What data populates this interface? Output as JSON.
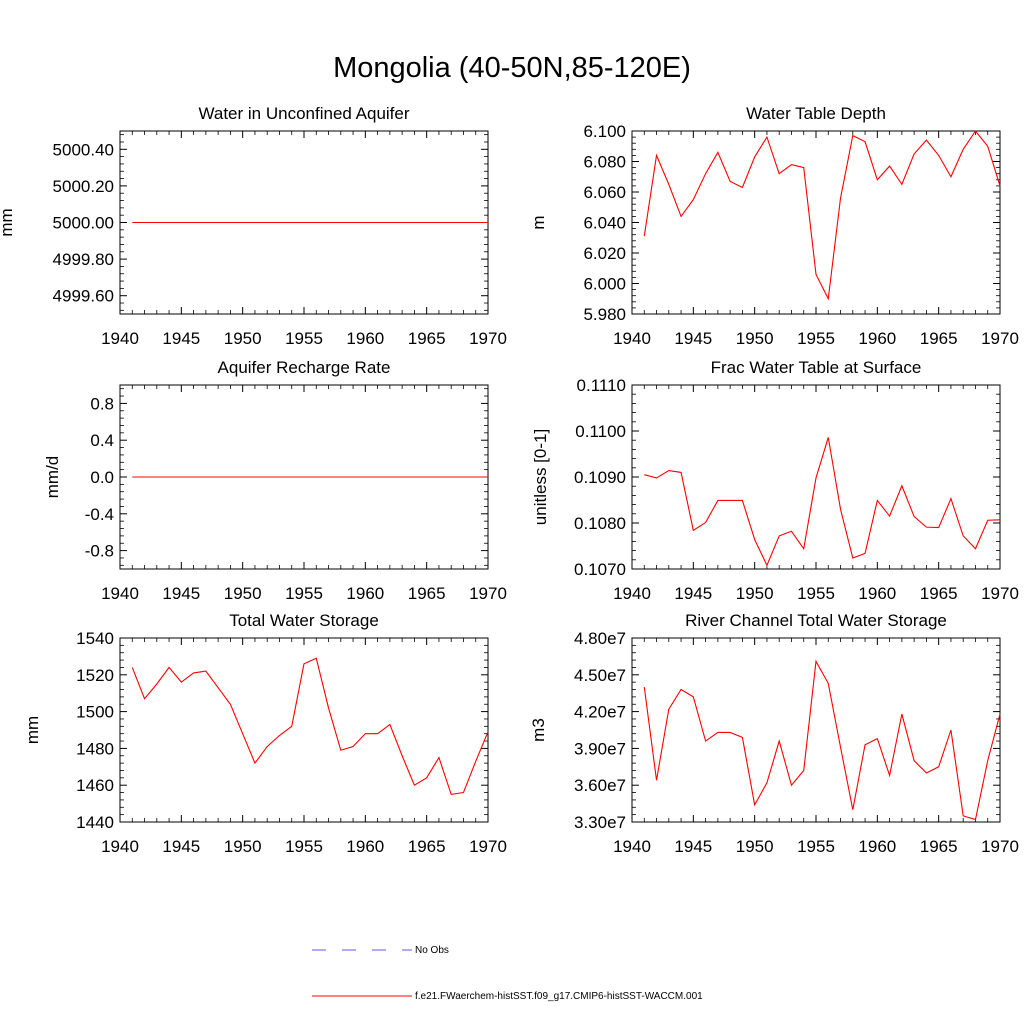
{
  "figure": {
    "title": "Mongolia (40-50N,85-120E)",
    "legend": [
      {
        "label": "No Obs",
        "color": "#5b5bd6",
        "dash": "dashed"
      },
      {
        "label": "f.e21.FWaerchem-histSST.f09_g17.CMIP6-histSST-WACCM.001",
        "color": "#ff0000",
        "dash": "solid"
      }
    ]
  },
  "chart_data": [
    {
      "type": "line",
      "title": "Water in Unconfined Aquifer",
      "ylabel": "mm",
      "xlabel": "",
      "xlim": [
        1940,
        1970
      ],
      "ylim": [
        4999.5,
        5000.5
      ],
      "xticks": [
        "1940",
        "1945",
        "1950",
        "1955",
        "1960",
        "1965",
        "1970"
      ],
      "yticks": [
        "4999.60",
        "4999.80",
        "5000.00",
        "5000.20",
        "5000.40"
      ],
      "series": [
        {
          "color": "#ff0000",
          "x": [
            1941,
            1942,
            1943,
            1944,
            1945,
            1946,
            1947,
            1948,
            1949,
            1950,
            1951,
            1952,
            1953,
            1954,
            1955,
            1956,
            1957,
            1958,
            1959,
            1960,
            1961,
            1962,
            1963,
            1964,
            1965,
            1966,
            1967,
            1968,
            1969,
            1970
          ],
          "y": [
            5000,
            5000,
            5000,
            5000,
            5000,
            5000,
            5000,
            5000,
            5000,
            5000,
            5000,
            5000,
            5000,
            5000,
            5000,
            5000,
            5000,
            5000,
            5000,
            5000,
            5000,
            5000,
            5000,
            5000,
            5000,
            5000,
            5000,
            5000,
            5000,
            5000
          ]
        }
      ]
    },
    {
      "type": "line",
      "title": "Water Table Depth",
      "ylabel": "m",
      "xlabel": "",
      "xlim": [
        1940,
        1970
      ],
      "ylim": [
        5.98,
        6.1
      ],
      "xticks": [
        "1940",
        "1945",
        "1950",
        "1955",
        "1960",
        "1965",
        "1970"
      ],
      "yticks": [
        "5.980",
        "6.000",
        "6.020",
        "6.040",
        "6.060",
        "6.080",
        "6.100"
      ],
      "series": [
        {
          "color": "#ff0000",
          "x": [
            1941,
            1942,
            1943,
            1944,
            1945,
            1946,
            1947,
            1948,
            1949,
            1950,
            1951,
            1952,
            1953,
            1954,
            1955,
            1956,
            1957,
            1958,
            1959,
            1960,
            1961,
            1962,
            1963,
            1964,
            1965,
            1966,
            1967,
            1968,
            1969,
            1970
          ],
          "y": [
            6.031,
            6.084,
            6.065,
            6.044,
            6.055,
            6.072,
            6.086,
            6.067,
            6.063,
            6.083,
            6.096,
            6.072,
            6.078,
            6.076,
            6.006,
            5.99,
            6.056,
            6.097,
            6.093,
            6.068,
            6.077,
            6.065,
            6.085,
            6.094,
            6.084,
            6.07,
            6.088,
            6.1,
            6.09,
            6.064
          ]
        }
      ]
    },
    {
      "type": "line",
      "title": "Aquifer Recharge Rate",
      "ylabel": "mm/d",
      "xlabel": "",
      "xlim": [
        1940,
        1970
      ],
      "ylim": [
        -1,
        1
      ],
      "xticks": [
        "1940",
        "1945",
        "1950",
        "1955",
        "1960",
        "1965",
        "1970"
      ],
      "yticks": [
        "-0.8",
        "-0.4",
        "0.0",
        "0.4",
        "0.8"
      ],
      "series": [
        {
          "color": "#ff0000",
          "x": [
            1941,
            1942,
            1943,
            1944,
            1945,
            1946,
            1947,
            1948,
            1949,
            1950,
            1951,
            1952,
            1953,
            1954,
            1955,
            1956,
            1957,
            1958,
            1959,
            1960,
            1961,
            1962,
            1963,
            1964,
            1965,
            1966,
            1967,
            1968,
            1969,
            1970
          ],
          "y": [
            0,
            0,
            0,
            0,
            0,
            0,
            0,
            0,
            0,
            0,
            0,
            0,
            0,
            0,
            0,
            0,
            0,
            0,
            0,
            0,
            0,
            0,
            0,
            0,
            0,
            0,
            0,
            0,
            0,
            0
          ]
        }
      ]
    },
    {
      "type": "line",
      "title": "Frac Water Table at Surface",
      "ylabel": "unitless [0-1]",
      "xlabel": "",
      "xlim": [
        1940,
        1970
      ],
      "ylim": [
        0.107,
        0.111
      ],
      "xticks": [
        "1940",
        "1945",
        "1950",
        "1955",
        "1960",
        "1965",
        "1970"
      ],
      "yticks": [
        "0.1070",
        "0.1080",
        "0.1090",
        "0.1100",
        "0.1110"
      ],
      "series": [
        {
          "color": "#ff0000",
          "x": [
            1941,
            1942,
            1943,
            1944,
            1945,
            1946,
            1947,
            1948,
            1949,
            1950,
            1951,
            1952,
            1953,
            1954,
            1955,
            1956,
            1957,
            1958,
            1959,
            1960,
            1961,
            1962,
            1963,
            1964,
            1965,
            1966,
            1967,
            1968,
            1969,
            1970
          ],
          "y": [
            0.10905,
            0.10898,
            0.10914,
            0.1091,
            0.10784,
            0.10801,
            0.10849,
            0.10849,
            0.10849,
            0.10764,
            0.10708,
            0.10772,
            0.10782,
            0.10744,
            0.10898,
            0.10986,
            0.1083,
            0.10724,
            0.10734,
            0.10849,
            0.10815,
            0.10881,
            0.10814,
            0.10791,
            0.1079,
            0.10853,
            0.10772,
            0.10744,
            0.10806,
            0.10807
          ]
        }
      ]
    },
    {
      "type": "line",
      "title": "Total Water Storage",
      "ylabel": "mm",
      "xlabel": "",
      "xlim": [
        1940,
        1970
      ],
      "ylim": [
        1440,
        1540
      ],
      "xticks": [
        "1940",
        "1945",
        "1950",
        "1955",
        "1960",
        "1965",
        "1970"
      ],
      "yticks": [
        "1440",
        "1460",
        "1480",
        "1500",
        "1520",
        "1540"
      ],
      "series": [
        {
          "color": "#ff0000",
          "x": [
            1941,
            1942,
            1943,
            1944,
            1945,
            1946,
            1947,
            1948,
            1949,
            1950,
            1951,
            1952,
            1953,
            1954,
            1955,
            1956,
            1957,
            1958,
            1959,
            1960,
            1961,
            1962,
            1963,
            1964,
            1965,
            1966,
            1967,
            1968,
            1969,
            1970
          ],
          "y": [
            1524,
            1507,
            1515,
            1524,
            1516,
            1521,
            1522,
            1513,
            1504,
            1488,
            1472,
            1481,
            1487,
            1492,
            1526,
            1529,
            1502,
            1479,
            1481,
            1488,
            1488,
            1493,
            1476,
            1460,
            1464,
            1475,
            1455,
            1456,
            1473,
            1489
          ]
        }
      ]
    },
    {
      "type": "line",
      "title": "River Channel Total Water Storage",
      "ylabel": "m3",
      "xlabel": "",
      "xlim": [
        1940,
        1970
      ],
      "ylim": [
        33000000,
        48000000
      ],
      "xticks": [
        "1940",
        "1945",
        "1950",
        "1955",
        "1960",
        "1965",
        "1970"
      ],
      "yticks": [
        "3.30e7",
        "3.60e7",
        "3.90e7",
        "4.20e7",
        "4.50e7",
        "4.80e7"
      ],
      "series": [
        {
          "color": "#ff0000",
          "x": [
            1941,
            1942,
            1943,
            1944,
            1945,
            1946,
            1947,
            1948,
            1949,
            1950,
            1951,
            1952,
            1953,
            1954,
            1955,
            1956,
            1957,
            1958,
            1959,
            1960,
            1961,
            1962,
            1963,
            1964,
            1965,
            1966,
            1967,
            1968,
            1969,
            1970
          ],
          "y": [
            44000000,
            36400000,
            42200000,
            43800000,
            43200000,
            39600000,
            40300000,
            40300000,
            39900000,
            34400000,
            36200000,
            39600000,
            36000000,
            37200000,
            46100000,
            44300000,
            39100000,
            34000000,
            39300000,
            39800000,
            36800000,
            41800000,
            38000000,
            37000000,
            37500000,
            40500000,
            33500000,
            33200000,
            38000000,
            41800000
          ]
        }
      ]
    }
  ]
}
